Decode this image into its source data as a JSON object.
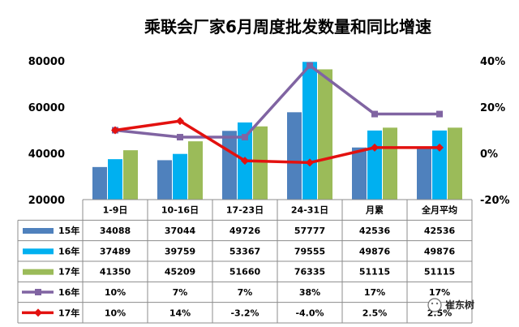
{
  "chart_data": {
    "type": "bar",
    "title": "乘联会厂家6月周度批发数量和同比增速",
    "categories": [
      "1-9日",
      "10-16日",
      "17-23日",
      "24-31日",
      "月累",
      "全月平均"
    ],
    "ylim": [
      20000,
      80000
    ],
    "yticks": [
      "20000",
      "40000",
      "60000",
      "80000"
    ],
    "y2lim": [
      -20,
      40
    ],
    "y2ticks": [
      "40%",
      "20%",
      "0%",
      "-20%"
    ],
    "series": [
      {
        "name": "15年",
        "kind": "bar",
        "color": "#4f81bd",
        "values": [
          34088,
          37044,
          49726,
          57777,
          42536,
          42536
        ]
      },
      {
        "name": "16年",
        "kind": "bar",
        "color": "#00b0f0",
        "values": [
          37489,
          39759,
          53367,
          79555,
          49876,
          49876
        ]
      },
      {
        "name": "17年",
        "kind": "bar",
        "color": "#9bbb59",
        "values": [
          41350,
          45209,
          51660,
          76335,
          51115,
          51115
        ]
      },
      {
        "name": "16年",
        "kind": "line",
        "axis": "right",
        "color": "#8064a2",
        "marker": "square",
        "values": [
          10,
          7,
          7,
          38,
          17,
          17
        ],
        "labels": [
          "10%",
          "7%",
          "7%",
          "38%",
          "17%",
          "17%"
        ]
      },
      {
        "name": "17年",
        "kind": "line",
        "axis": "right",
        "color": "#e3110f",
        "marker": "diamond",
        "values": [
          10,
          14,
          -3.2,
          -4.0,
          2.5,
          2.5
        ],
        "labels": [
          "10%",
          "14%",
          "-3.2%",
          "-4.0%",
          "2.5%",
          "2.5%"
        ]
      }
    ],
    "legend": "data-table"
  },
  "watermark": "崔东树"
}
